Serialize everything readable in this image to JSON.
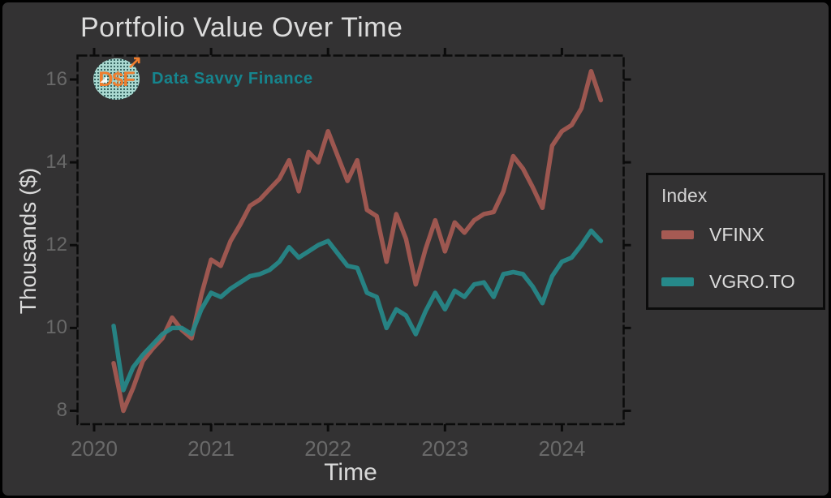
{
  "header": {
    "title": "Portfolio Value Over Time"
  },
  "branding": {
    "logo_text": "D$F",
    "name": "Data Savvy Finance",
    "logo_bg": "#A9D8D0",
    "logo_text_color": "#F07E2E",
    "name_color": "#16858E"
  },
  "legend": {
    "title": "Index",
    "position": "right",
    "items": [
      {
        "label": "VFINX"
      },
      {
        "label": "VGRO.TO"
      }
    ]
  },
  "colors": {
    "background": "#333233",
    "frame": "#0B0B0B",
    "title_text": "#DCDCDC",
    "axis_text": "#D9D9D9",
    "tick_text": "#696969",
    "vfinx": "#A65A53",
    "vgro": "#26898A"
  },
  "chart_data": {
    "type": "line",
    "title": "Portfolio Value Over Time",
    "xlabel": "Time",
    "ylabel": "Thousands ($)",
    "grid": false,
    "legend_position": "right",
    "frequency": "monthly",
    "xlim": [
      2019.85,
      2024.53
    ],
    "ylim": [
      7.7,
      16.6
    ],
    "x_ticks": {
      "labels": [
        "2020",
        "2021",
        "2022",
        "2023",
        "2024"
      ],
      "values": [
        2020,
        2021,
        2022,
        2023,
        2024
      ]
    },
    "y_ticks": {
      "labels": [
        "16",
        "14",
        "12",
        "10",
        "8"
      ],
      "values": [
        16,
        14,
        12,
        10,
        8
      ]
    },
    "x": [
      "2020-02",
      "2020-03",
      "2020-04",
      "2020-05",
      "2020-06",
      "2020-07",
      "2020-08",
      "2020-09",
      "2020-10",
      "2020-11",
      "2020-12",
      "2021-01",
      "2021-02",
      "2021-03",
      "2021-04",
      "2021-05",
      "2021-06",
      "2021-07",
      "2021-08",
      "2021-09",
      "2021-10",
      "2021-11",
      "2021-12",
      "2022-01",
      "2022-02",
      "2022-03",
      "2022-04",
      "2022-05",
      "2022-06",
      "2022-07",
      "2022-08",
      "2022-09",
      "2022-10",
      "2022-11",
      "2022-12",
      "2023-01",
      "2023-02",
      "2023-03",
      "2023-04",
      "2023-05",
      "2023-06",
      "2023-07",
      "2023-08",
      "2023-09",
      "2023-10",
      "2023-11",
      "2023-12",
      "2024-01",
      "2024-02",
      "2024-03",
      "2024-04"
    ],
    "series": [
      {
        "name": "VFINX",
        "color": "#A65A53",
        "values": [
          9.15,
          8.0,
          8.55,
          9.2,
          9.5,
          9.75,
          10.25,
          9.95,
          9.75,
          10.8,
          11.65,
          11.5,
          12.1,
          12.5,
          12.95,
          13.1,
          13.35,
          13.6,
          14.05,
          13.3,
          14.25,
          14.0,
          14.75,
          14.15,
          13.55,
          14.05,
          12.85,
          12.7,
          11.6,
          12.75,
          12.15,
          11.05,
          11.9,
          12.6,
          11.85,
          12.55,
          12.3,
          12.6,
          12.75,
          12.8,
          13.3,
          14.15,
          13.85,
          13.4,
          12.9,
          14.4,
          14.75,
          14.9,
          15.3,
          16.2,
          15.5
        ]
      },
      {
        "name": "VGRO.TO",
        "color": "#26898A",
        "values": [
          10.05,
          8.5,
          9.05,
          9.35,
          9.6,
          9.85,
          10.0,
          10.0,
          9.85,
          10.45,
          10.85,
          10.75,
          10.95,
          11.1,
          11.25,
          11.3,
          11.4,
          11.6,
          11.95,
          11.7,
          11.85,
          12.0,
          12.1,
          11.8,
          11.5,
          11.45,
          10.85,
          10.75,
          10.0,
          10.45,
          10.3,
          9.85,
          10.4,
          10.85,
          10.45,
          10.9,
          10.75,
          11.05,
          11.1,
          10.75,
          11.3,
          11.35,
          11.3,
          11.0,
          10.6,
          11.25,
          11.6,
          11.7,
          12.0,
          12.35,
          12.1
        ]
      }
    ]
  }
}
